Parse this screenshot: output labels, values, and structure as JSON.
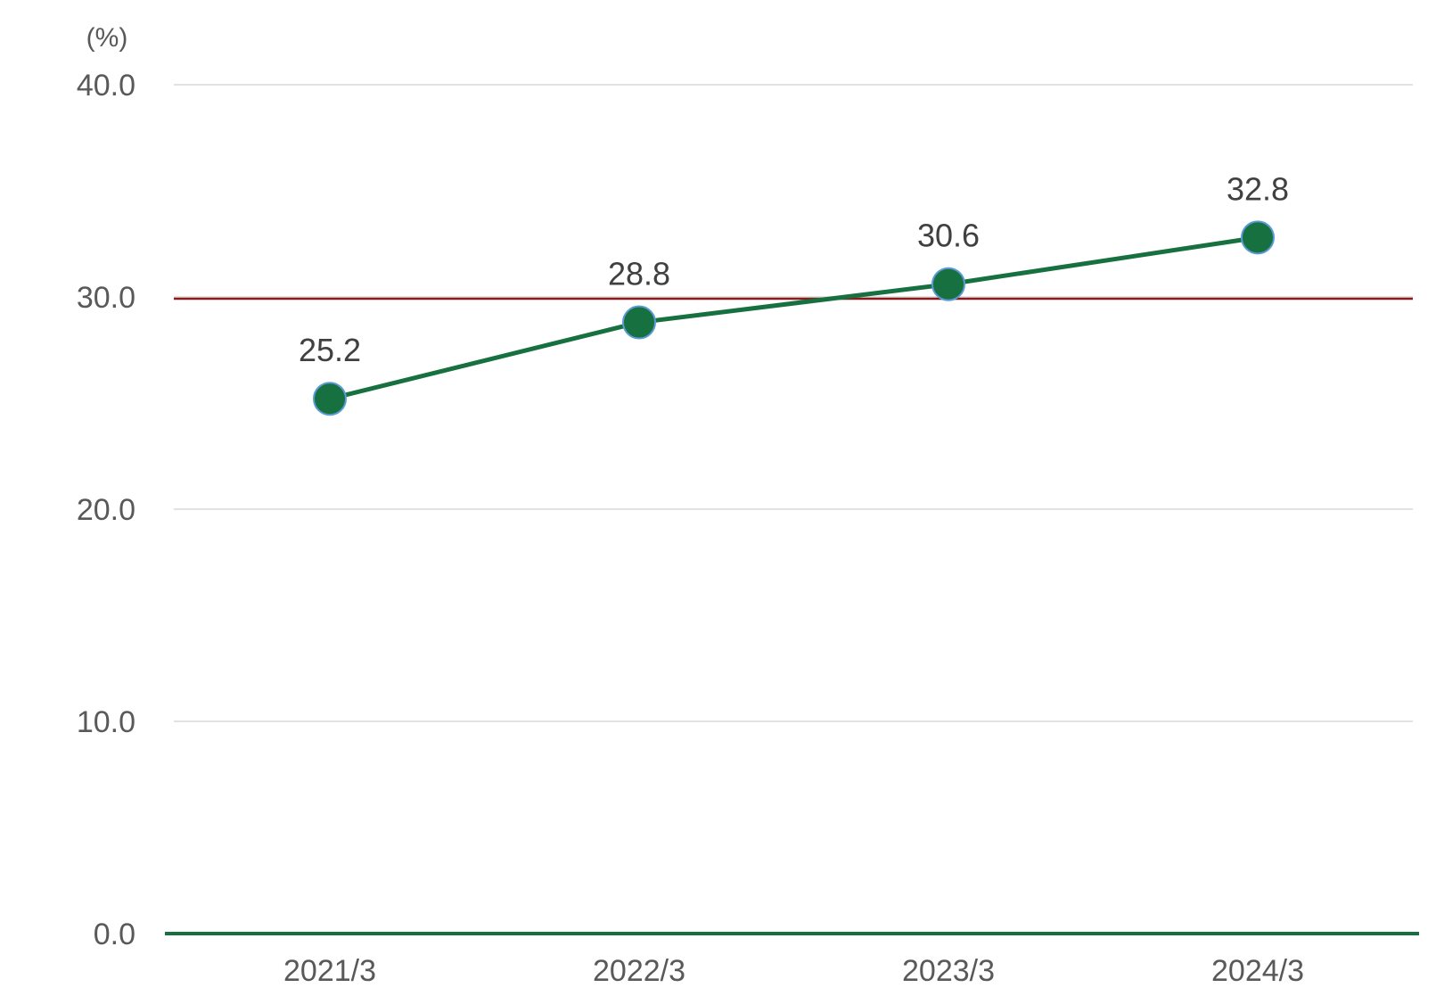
{
  "chart_data": {
    "type": "line",
    "unit_label": "(%)",
    "categories": [
      "2021/3",
      "2022/3",
      "2023/3",
      "2024/3"
    ],
    "series": [
      {
        "values": [
          25.2,
          28.8,
          30.6,
          32.8
        ],
        "color": "#17703f"
      }
    ],
    "data_labels": [
      "25.2",
      "28.8",
      "30.6",
      "32.8"
    ],
    "y_ticks": [
      "0.0",
      "10.0",
      "20.0",
      "30.0",
      "40.0"
    ],
    "ylim": [
      0,
      40
    ],
    "reference_line": {
      "value": 30,
      "color": "#8b1a1a"
    },
    "grid": true,
    "gridline_color": "#d9d9d9",
    "axis_color": "#17703f",
    "marker_edge_color": "#5b9bd5"
  }
}
